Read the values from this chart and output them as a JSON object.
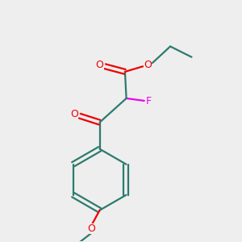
{
  "background_color": "#eeeeee",
  "bond_color": "#2d7a6e",
  "oxygen_color": "#ee0000",
  "fluorine_color": "#ee00ee",
  "line_width": 1.6,
  "fig_size": [
    3.0,
    3.0
  ],
  "dpi": 100,
  "xlim": [
    0.15,
    0.85
  ],
  "ylim": [
    0.05,
    0.95
  ]
}
